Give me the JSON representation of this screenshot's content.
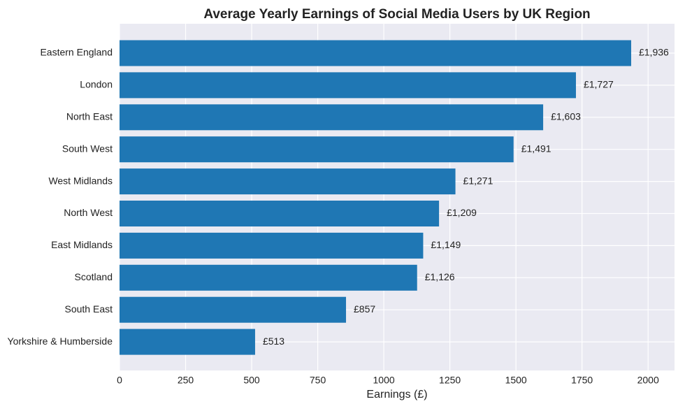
{
  "chart_data": {
    "type": "barh",
    "title": "Average Yearly Earnings of Social Media Users by UK Region",
    "xlabel": "Earnings (£)",
    "categories": [
      "Eastern England",
      "London",
      "North East",
      "South West",
      "West Midlands",
      "North West",
      "East Midlands",
      "Scotland",
      "South East",
      "Yorkshire & Humberside"
    ],
    "values": [
      1936,
      1727,
      1603,
      1491,
      1271,
      1209,
      1149,
      1126,
      857,
      513
    ],
    "value_labels": [
      "£1,936",
      "£1,727",
      "£1,603",
      "£1,491",
      "£1,271",
      "£1,209",
      "£1,149",
      "£1,126",
      "£857",
      "£513"
    ],
    "color": "#1f77b4",
    "xlim": [
      0,
      2100
    ],
    "xticks": [
      0,
      250,
      500,
      750,
      1000,
      1250,
      1500,
      1750,
      2000
    ],
    "grid": true
  }
}
